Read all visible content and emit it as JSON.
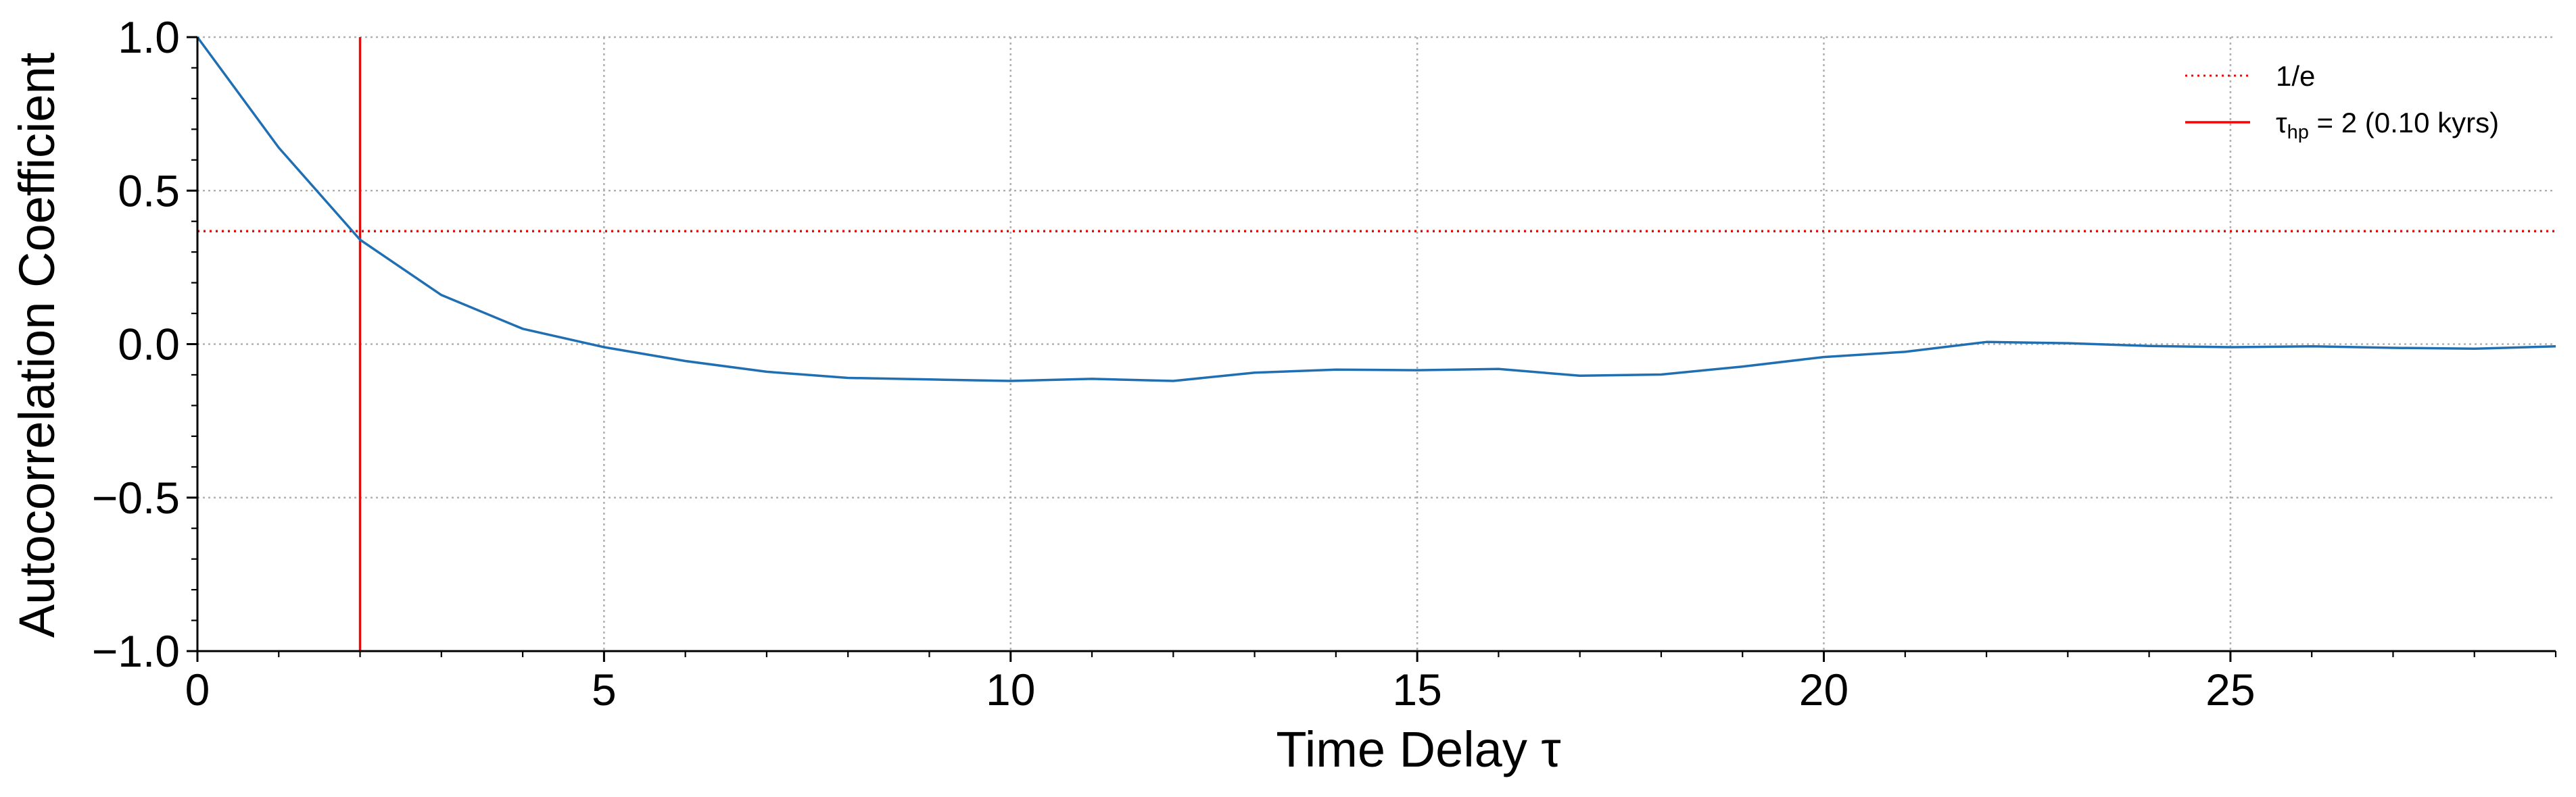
{
  "chart_data": {
    "type": "line",
    "title": "",
    "xlabel": "Time Delay τ",
    "ylabel": "Autocorrelation Coefficient",
    "xlim": [
      0,
      29
    ],
    "ylim": [
      -1.0,
      1.0
    ],
    "x_ticks": [
      0,
      5,
      10,
      15,
      20,
      25
    ],
    "x_tick_labels": [
      "0",
      "5",
      "10",
      "15",
      "20",
      "25"
    ],
    "y_ticks": [
      1.0,
      0.5,
      0.0,
      -0.5,
      -1.0
    ],
    "y_tick_labels": [
      "1.0",
      "0.5",
      "0.0",
      "−0.5",
      "−1.0"
    ],
    "grid": true,
    "legend_position": "top-right",
    "series": [
      {
        "x": [
          0,
          1,
          2,
          3,
          4,
          5,
          6,
          7,
          8,
          9,
          10,
          11,
          12,
          13,
          14,
          15,
          16,
          17,
          18,
          19,
          20,
          21,
          22,
          23,
          24,
          25,
          26,
          27,
          28,
          29
        ],
        "values": [
          1.0,
          0.64,
          0.34,
          0.16,
          0.05,
          -0.01,
          -0.055,
          -0.09,
          -0.11,
          -0.115,
          -0.12,
          -0.113,
          -0.12,
          -0.093,
          -0.083,
          -0.085,
          -0.081,
          -0.103,
          -0.099,
          -0.073,
          -0.042,
          -0.025,
          0.007,
          0.003,
          -0.006,
          -0.01,
          -0.007,
          -0.012,
          -0.015,
          -0.007
        ],
        "color": "#1f6fb2"
      }
    ],
    "reference_lines": [
      {
        "name": "1/e",
        "orientation": "horizontal",
        "value": 0.3679,
        "style": "dotted",
        "color": "#ff0000"
      },
      {
        "name": "τhp = 2 (0.10 kyrs)",
        "orientation": "vertical",
        "value": 2,
        "style": "solid",
        "color": "#ff0000"
      }
    ],
    "legend": [
      {
        "style": "dotted",
        "color": "#ff0000",
        "label": "1/e"
      },
      {
        "style": "solid",
        "color": "#ff0000",
        "label_main": "τ",
        "label_sub": "hp",
        "label_rest": " = 2 (0.10 kyrs)"
      }
    ]
  }
}
